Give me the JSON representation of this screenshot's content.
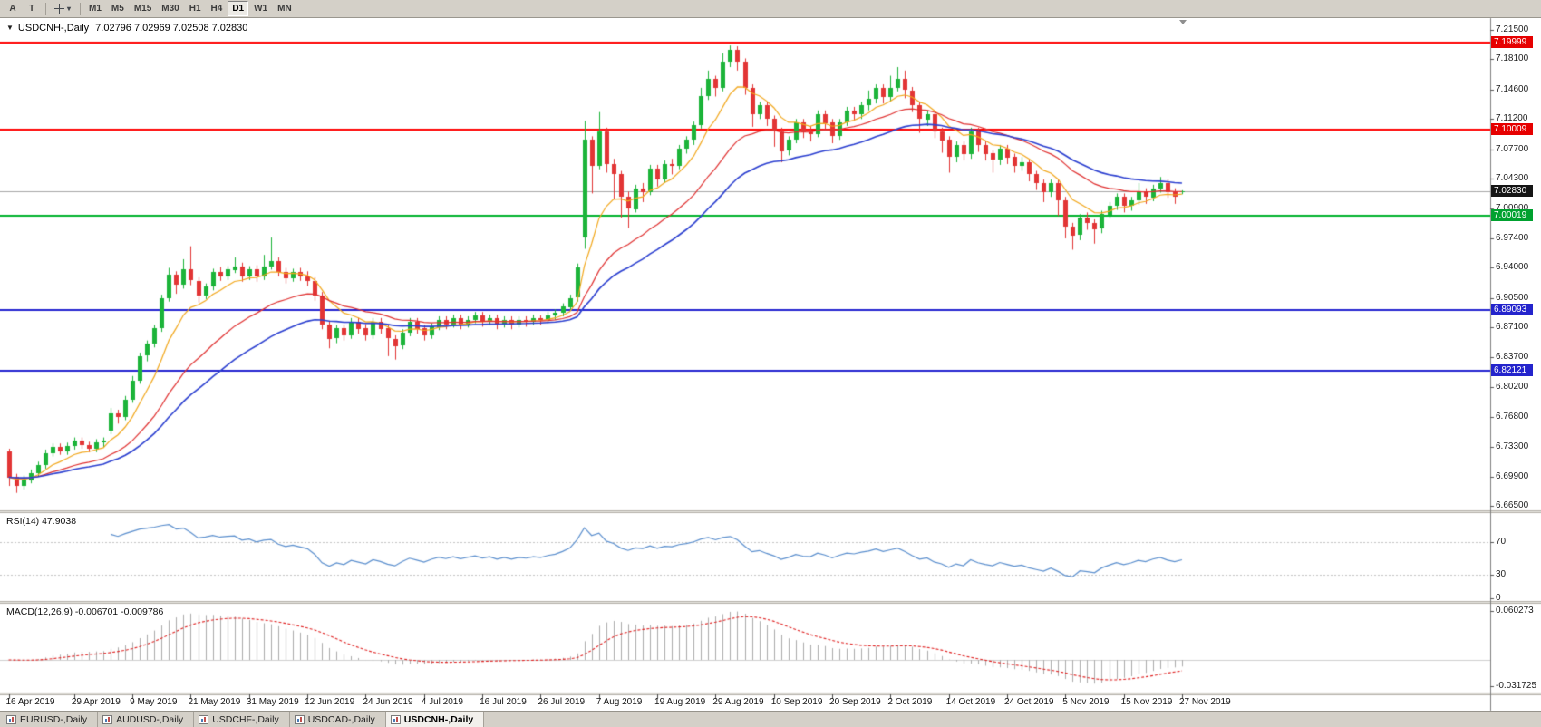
{
  "toolbar": {
    "tools": [
      {
        "label": "A"
      },
      {
        "label": "T"
      }
    ],
    "timeframes": [
      {
        "label": "M1",
        "active": false
      },
      {
        "label": "M5",
        "active": false
      },
      {
        "label": "M15",
        "active": false
      },
      {
        "label": "M30",
        "active": false
      },
      {
        "label": "H1",
        "active": false
      },
      {
        "label": "H4",
        "active": false
      },
      {
        "label": "D1",
        "active": true
      },
      {
        "label": "W1",
        "active": false
      },
      {
        "label": "MN",
        "active": false
      }
    ]
  },
  "chart": {
    "title_symbol": "USDCNH-,Daily",
    "title_ohlc": "7.02796 7.02969 7.02508 7.02830",
    "price_axis_labels": [
      {
        "text": "7.21500",
        "price": 7.215
      },
      {
        "text": "7.18100",
        "price": 7.181
      },
      {
        "text": "7.14600",
        "price": 7.146
      },
      {
        "text": "7.11200",
        "price": 7.112
      },
      {
        "text": "7.07700",
        "price": 7.077
      },
      {
        "text": "7.04300",
        "price": 7.043
      },
      {
        "text": "7.00900",
        "price": 7.009
      },
      {
        "text": "6.97400",
        "price": 6.974
      },
      {
        "text": "6.94000",
        "price": 6.94
      },
      {
        "text": "6.90500",
        "price": 6.905
      },
      {
        "text": "6.87100",
        "price": 6.871
      },
      {
        "text": "6.83700",
        "price": 6.837
      },
      {
        "text": "6.80200",
        "price": 6.802
      },
      {
        "text": "6.76800",
        "price": 6.768
      },
      {
        "text": "6.73300",
        "price": 6.733
      },
      {
        "text": "6.69900",
        "price": 6.699
      },
      {
        "text": "6.66500",
        "price": 6.665
      }
    ],
    "price_tags": [
      {
        "text": "7.19999",
        "price": 7.19999,
        "bg": "#e60000"
      },
      {
        "text": "7.10009",
        "price": 7.10009,
        "bg": "#e60000"
      },
      {
        "text": "7.02830",
        "price": 7.0283,
        "bg": "#151515"
      },
      {
        "text": "7.00019",
        "price": 7.00019,
        "bg": "#00a12f"
      },
      {
        "text": "6.89093",
        "price": 6.89093,
        "bg": "#2424cc"
      },
      {
        "text": "6.82121",
        "price": 6.82121,
        "bg": "#2424cc"
      }
    ],
    "hlines": [
      {
        "price": 7.19999,
        "color": "#ff0000"
      },
      {
        "price": 7.10009,
        "color": "#ff0000"
      },
      {
        "price": 7.00019,
        "color": "#00b22d"
      },
      {
        "price": 6.89093,
        "color": "#2424d0"
      },
      {
        "price": 6.82121,
        "color": "#2424d0"
      }
    ],
    "bid_line": {
      "price": 7.0283,
      "color": "#a8a8a8"
    }
  },
  "chart_data": {
    "type": "candlestick",
    "symbol": "USDCNH-",
    "timeframe": "Daily",
    "ylim": [
      6.6629,
      7.2265
    ],
    "colors": {
      "bull": "#1cb439",
      "bear": "#e23535",
      "ma_fast": "#f2a71b",
      "ma_mid": "#e03030",
      "ma_slow": "#2b3fd0"
    },
    "moving_averages": [
      {
        "period": 8,
        "color_key": "ma_fast"
      },
      {
        "period": 21,
        "color_key": "ma_mid"
      },
      {
        "period": 34,
        "color_key": "ma_slow"
      }
    ],
    "date_labels": [
      {
        "text": "16 Apr 2019",
        "index": 0
      },
      {
        "text": "29 Apr 2019",
        "index": 9
      },
      {
        "text": "9 May 2019",
        "index": 17
      },
      {
        "text": "21 May 2019",
        "index": 25
      },
      {
        "text": "31 May 2019",
        "index": 33
      },
      {
        "text": "12 Jun 2019",
        "index": 41
      },
      {
        "text": "24 Jun 2019",
        "index": 49
      },
      {
        "text": "4 Jul 2019",
        "index": 57
      },
      {
        "text": "16 Jul 2019",
        "index": 65
      },
      {
        "text": "26 Jul 2019",
        "index": 73
      },
      {
        "text": "7 Aug 2019",
        "index": 81
      },
      {
        "text": "19 Aug 2019",
        "index": 89
      },
      {
        "text": "29 Aug 2019",
        "index": 97
      },
      {
        "text": "10 Sep 2019",
        "index": 105
      },
      {
        "text": "20 Sep 2019",
        "index": 113
      },
      {
        "text": "2 Oct 2019",
        "index": 121
      },
      {
        "text": "14 Oct 2019",
        "index": 129
      },
      {
        "text": "24 Oct 2019",
        "index": 137
      },
      {
        "text": "5 Nov 2019",
        "index": 145
      },
      {
        "text": "15 Nov 2019",
        "index": 153
      },
      {
        "text": "27 Nov 2019",
        "index": 161
      }
    ],
    "candles": [
      [
        6.728,
        6.731,
        6.688,
        6.698
      ],
      [
        6.698,
        6.702,
        6.68,
        6.688
      ],
      [
        6.688,
        6.7,
        6.684,
        6.695
      ],
      [
        6.695,
        6.707,
        6.691,
        6.703
      ],
      [
        6.703,
        6.716,
        6.699,
        6.712
      ],
      [
        6.712,
        6.73,
        6.708,
        6.726
      ],
      [
        6.726,
        6.737,
        6.722,
        6.733
      ],
      [
        6.733,
        6.737,
        6.724,
        6.728
      ],
      [
        6.728,
        6.738,
        6.724,
        6.734
      ],
      [
        6.734,
        6.744,
        6.73,
        6.74
      ],
      [
        6.74,
        6.744,
        6.731,
        6.735
      ],
      [
        6.735,
        6.739,
        6.727,
        6.731
      ],
      [
        6.731,
        6.742,
        6.727,
        6.738
      ],
      [
        6.738,
        6.744,
        6.732,
        6.74
      ],
      [
        6.752,
        6.778,
        6.748,
        6.772
      ],
      [
        6.772,
        6.776,
        6.76,
        6.768
      ],
      [
        6.768,
        6.792,
        6.764,
        6.788
      ],
      [
        6.788,
        6.815,
        6.784,
        6.81
      ],
      [
        6.81,
        6.842,
        6.806,
        6.838
      ],
      [
        6.838,
        6.856,
        6.832,
        6.852
      ],
      [
        6.852,
        6.874,
        6.848,
        6.87
      ],
      [
        6.87,
        6.909,
        6.866,
        6.905
      ],
      [
        6.905,
        6.94,
        6.901,
        6.932
      ],
      [
        6.932,
        6.936,
        6.91,
        6.92
      ],
      [
        6.92,
        6.95,
        6.916,
        6.938
      ],
      [
        6.938,
        6.965,
        6.92,
        6.925
      ],
      [
        6.925,
        6.929,
        6.9,
        6.908
      ],
      [
        6.908,
        6.922,
        6.904,
        6.918
      ],
      [
        6.918,
        6.939,
        6.914,
        6.935
      ],
      [
        6.935,
        6.941,
        6.925,
        6.93
      ],
      [
        6.93,
        6.942,
        6.926,
        6.938
      ],
      [
        6.938,
        6.952,
        6.934,
        6.942
      ],
      [
        6.942,
        6.946,
        6.924,
        6.93
      ],
      [
        6.93,
        6.942,
        6.926,
        6.938
      ],
      [
        6.938,
        6.943,
        6.924,
        6.93
      ],
      [
        6.93,
        6.955,
        6.926,
        6.942
      ],
      [
        6.942,
        6.975,
        6.938,
        6.948
      ],
      [
        6.948,
        6.952,
        6.93,
        6.935
      ],
      [
        6.935,
        6.94,
        6.922,
        6.928
      ],
      [
        6.928,
        6.939,
        6.924,
        6.935
      ],
      [
        6.935,
        6.94,
        6.925,
        6.93
      ],
      [
        6.93,
        6.936,
        6.919,
        6.925
      ],
      [
        6.925,
        6.929,
        6.902,
        6.908
      ],
      [
        6.908,
        6.912,
        6.869,
        6.875
      ],
      [
        6.875,
        6.879,
        6.847,
        6.858
      ],
      [
        6.858,
        6.874,
        6.853,
        6.87
      ],
      [
        6.87,
        6.874,
        6.856,
        6.862
      ],
      [
        6.862,
        6.882,
        6.858,
        6.878
      ],
      [
        6.878,
        6.882,
        6.864,
        6.87
      ],
      [
        6.87,
        6.875,
        6.856,
        6.862
      ],
      [
        6.862,
        6.882,
        6.858,
        6.878
      ],
      [
        6.878,
        6.882,
        6.864,
        6.87
      ],
      [
        6.87,
        6.874,
        6.838,
        6.858
      ],
      [
        6.858,
        6.862,
        6.834,
        6.85
      ],
      [
        6.85,
        6.869,
        6.846,
        6.865
      ],
      [
        6.865,
        6.882,
        6.861,
        6.878
      ],
      [
        6.878,
        6.882,
        6.864,
        6.87
      ],
      [
        6.87,
        6.874,
        6.856,
        6.862
      ],
      [
        6.862,
        6.876,
        6.858,
        6.872
      ],
      [
        6.872,
        6.884,
        6.868,
        6.88
      ],
      [
        6.88,
        6.884,
        6.869,
        6.875
      ],
      [
        6.875,
        6.886,
        6.871,
        6.882
      ],
      [
        6.882,
        6.886,
        6.869,
        6.875
      ],
      [
        6.875,
        6.884,
        6.871,
        6.88
      ],
      [
        6.88,
        6.889,
        6.876,
        6.885
      ],
      [
        6.885,
        6.889,
        6.872,
        6.878
      ],
      [
        6.878,
        6.886,
        6.874,
        6.882
      ],
      [
        6.882,
        6.886,
        6.869,
        6.875
      ],
      [
        6.875,
        6.884,
        6.871,
        6.88
      ],
      [
        6.88,
        6.884,
        6.869,
        6.875
      ],
      [
        6.875,
        6.884,
        6.871,
        6.88
      ],
      [
        6.88,
        6.884,
        6.872,
        6.878
      ],
      [
        6.878,
        6.886,
        6.874,
        6.882
      ],
      [
        6.882,
        6.885,
        6.874,
        6.88
      ],
      [
        6.88,
        6.889,
        6.876,
        6.885
      ],
      [
        6.885,
        6.892,
        6.88,
        6.888
      ],
      [
        6.888,
        6.899,
        6.884,
        6.895
      ],
      [
        6.895,
        6.909,
        6.891,
        6.905
      ],
      [
        6.905,
        6.945,
        6.901,
        6.94
      ],
      [
        6.975,
        7.11,
        6.962,
        7.088
      ],
      [
        7.088,
        7.092,
        7.026,
        7.058
      ],
      [
        7.058,
        7.12,
        7.054,
        7.098
      ],
      [
        7.098,
        7.102,
        7.05,
        7.06
      ],
      [
        7.06,
        7.066,
        7.02,
        7.048
      ],
      [
        7.048,
        7.052,
        6.998,
        7.022
      ],
      [
        7.022,
        7.028,
        6.986,
        7.008
      ],
      [
        7.008,
        7.036,
        7.004,
        7.032
      ],
      [
        7.032,
        7.038,
        7.016,
        7.028
      ],
      [
        7.028,
        7.059,
        7.024,
        7.055
      ],
      [
        7.055,
        7.059,
        7.034,
        7.042
      ],
      [
        7.042,
        7.064,
        7.038,
        7.06
      ],
      [
        7.06,
        7.066,
        7.048,
        7.058
      ],
      [
        7.058,
        7.082,
        7.054,
        7.078
      ],
      [
        7.078,
        7.092,
        7.072,
        7.088
      ],
      [
        7.088,
        7.109,
        7.082,
        7.105
      ],
      [
        7.105,
        7.148,
        7.101,
        7.138
      ],
      [
        7.138,
        7.168,
        7.134,
        7.158
      ],
      [
        7.158,
        7.162,
        7.138,
        7.148
      ],
      [
        7.148,
        7.188,
        7.144,
        7.178
      ],
      [
        7.178,
        7.197,
        7.172,
        7.192
      ],
      [
        7.192,
        7.196,
        7.168,
        7.178
      ],
      [
        7.178,
        7.182,
        7.14,
        7.148
      ],
      [
        7.148,
        7.152,
        7.103,
        7.118
      ],
      [
        7.118,
        7.132,
        7.112,
        7.128
      ],
      [
        7.128,
        7.132,
        7.104,
        7.112
      ],
      [
        7.112,
        7.116,
        7.08,
        7.098
      ],
      [
        7.098,
        7.102,
        7.062,
        7.075
      ],
      [
        7.075,
        7.092,
        7.07,
        7.088
      ],
      [
        7.088,
        7.112,
        7.084,
        7.108
      ],
      [
        7.108,
        7.112,
        7.09,
        7.098
      ],
      [
        7.098,
        7.104,
        7.086,
        7.095
      ],
      [
        7.095,
        7.122,
        7.091,
        7.118
      ],
      [
        7.118,
        7.122,
        7.1,
        7.108
      ],
      [
        7.108,
        7.112,
        7.084,
        7.092
      ],
      [
        7.092,
        7.112,
        7.088,
        7.108
      ],
      [
        7.108,
        7.126,
        7.104,
        7.122
      ],
      [
        7.122,
        7.126,
        7.11,
        7.118
      ],
      [
        7.118,
        7.132,
        7.112,
        7.128
      ],
      [
        7.128,
        7.145,
        7.122,
        7.135
      ],
      [
        7.135,
        7.152,
        7.13,
        7.148
      ],
      [
        7.148,
        7.152,
        7.13,
        7.138
      ],
      [
        7.138,
        7.162,
        7.132,
        7.148
      ],
      [
        7.148,
        7.172,
        7.144,
        7.158
      ],
      [
        7.158,
        7.168,
        7.136,
        7.145
      ],
      [
        7.145,
        7.149,
        7.12,
        7.128
      ],
      [
        7.128,
        7.132,
        7.096,
        7.112
      ],
      [
        7.112,
        7.122,
        7.104,
        7.118
      ],
      [
        7.118,
        7.122,
        7.09,
        7.098
      ],
      [
        7.098,
        7.102,
        7.073,
        7.088
      ],
      [
        7.088,
        7.092,
        7.05,
        7.068
      ],
      [
        7.068,
        7.086,
        7.062,
        7.082
      ],
      [
        7.082,
        7.086,
        7.064,
        7.072
      ],
      [
        7.072,
        7.102,
        7.066,
        7.098
      ],
      [
        7.098,
        7.102,
        7.074,
        7.082
      ],
      [
        7.082,
        7.086,
        7.064,
        7.072
      ],
      [
        7.072,
        7.076,
        7.05,
        7.065
      ],
      [
        7.065,
        7.082,
        7.059,
        7.078
      ],
      [
        7.078,
        7.082,
        7.06,
        7.068
      ],
      [
        7.068,
        7.072,
        7.05,
        7.058
      ],
      [
        7.058,
        7.068,
        7.052,
        7.062
      ],
      [
        7.062,
        7.066,
        7.04,
        7.048
      ],
      [
        7.048,
        7.052,
        7.03,
        7.038
      ],
      [
        7.038,
        7.042,
        7.016,
        7.028
      ],
      [
        7.028,
        7.042,
        7.022,
        7.038
      ],
      [
        7.038,
        7.042,
        7.0,
        7.018
      ],
      [
        7.018,
        7.022,
        6.974,
        6.988
      ],
      [
        6.988,
        6.992,
        6.961,
        6.978
      ],
      [
        6.978,
        7.002,
        6.972,
        6.998
      ],
      [
        6.998,
        7.004,
        6.984,
        6.992
      ],
      [
        6.992,
        6.996,
        6.968,
        6.985
      ],
      [
        6.985,
        7.006,
        6.98,
        7.002
      ],
      [
        7.002,
        7.016,
        6.997,
        7.012
      ],
      [
        7.012,
        7.026,
        7.007,
        7.022
      ],
      [
        7.022,
        7.026,
        7.004,
        7.012
      ],
      [
        7.012,
        7.022,
        7.006,
        7.018
      ],
      [
        7.018,
        7.038,
        7.013,
        7.028
      ],
      [
        7.028,
        7.032,
        7.014,
        7.022
      ],
      [
        7.022,
        7.036,
        7.017,
        7.032
      ],
      [
        7.032,
        7.045,
        7.027,
        7.038
      ],
      [
        7.038,
        7.042,
        7.021,
        7.028
      ],
      [
        7.028,
        7.032,
        7.014,
        7.022
      ],
      [
        7.02796,
        7.02969,
        7.02508,
        7.0283
      ]
    ]
  },
  "rsi": {
    "label": "RSI(14) 47.9038",
    "period": 14,
    "line_color": "#5b8fce",
    "levels": [
      {
        "text": "70",
        "value": 70
      },
      {
        "text": "30",
        "value": 30
      },
      {
        "text": "0",
        "value": 0
      }
    ]
  },
  "macd": {
    "label": "MACD(12,26,9) -0.006701 -0.009786",
    "fast": 12,
    "slow": 26,
    "signal_period": 9,
    "axis_labels": [
      {
        "text": "0.060273",
        "value": 0.060273
      },
      {
        "text": "-0.031725",
        "value": -0.031725
      }
    ],
    "histogram_color": "#ababab",
    "signal_color": "#e02020"
  },
  "tabs": [
    {
      "label": "EURUSD-,Daily",
      "active": false
    },
    {
      "label": "AUDUSD-,Daily",
      "active": false
    },
    {
      "label": "USDCHF-,Daily",
      "active": false
    },
    {
      "label": "USDCAD-,Daily",
      "active": false
    },
    {
      "label": "USDCNH-,Daily",
      "active": true
    }
  ]
}
